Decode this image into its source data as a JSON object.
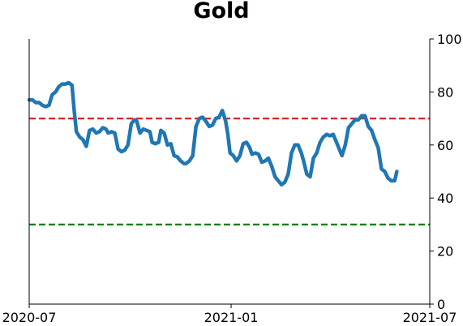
{
  "chart_data": {
    "type": "line",
    "title": "Gold",
    "xlabel": "",
    "ylabel": "",
    "x_tick_labels": [
      "2020-07",
      "2021-01",
      "2021-07"
    ],
    "x_ticks": [
      "2020-07-01",
      "2021-01-01",
      "2021-07-01"
    ],
    "y_ticks": [
      0,
      20,
      40,
      60,
      80,
      100
    ],
    "y_tick_labels": [
      "0",
      "20",
      "40",
      "60",
      "80",
      "100"
    ],
    "ylim": [
      0,
      100
    ],
    "xlim": [
      "2020-07-01",
      "2021-07-01"
    ],
    "y_axis_side": "right",
    "grid": false,
    "reference_lines": [
      {
        "value": 70,
        "color": "#d62728",
        "style": "dashed"
      },
      {
        "value": 30,
        "color": "#008000",
        "style": "dashed"
      }
    ],
    "series": [
      {
        "color": "#1f77b4",
        "points": [
          [
            "2020-07-01",
            77
          ],
          [
            "2020-07-04",
            77
          ],
          [
            "2020-07-07",
            76
          ],
          [
            "2020-07-10",
            76
          ],
          [
            "2020-07-13",
            75
          ],
          [
            "2020-07-16",
            74.5
          ],
          [
            "2020-07-19",
            75
          ],
          [
            "2020-07-22",
            79
          ],
          [
            "2020-07-25",
            80
          ],
          [
            "2020-07-28",
            82
          ],
          [
            "2020-07-31",
            83
          ],
          [
            "2020-08-03",
            83
          ],
          [
            "2020-08-06",
            83.5
          ],
          [
            "2020-08-09",
            82.5
          ],
          [
            "2020-08-11",
            73
          ],
          [
            "2020-08-13",
            65
          ],
          [
            "2020-08-16",
            63
          ],
          [
            "2020-08-19",
            62
          ],
          [
            "2020-08-22",
            59.5
          ],
          [
            "2020-08-25",
            65.5
          ],
          [
            "2020-08-28",
            66
          ],
          [
            "2020-08-31",
            64.5
          ],
          [
            "2020-09-03",
            65
          ],
          [
            "2020-09-06",
            66.5
          ],
          [
            "2020-09-09",
            66
          ],
          [
            "2020-09-11",
            64.5
          ],
          [
            "2020-09-14",
            65
          ],
          [
            "2020-09-17",
            64.5
          ],
          [
            "2020-09-20",
            58.5
          ],
          [
            "2020-09-23",
            57.5
          ],
          [
            "2020-09-26",
            58
          ],
          [
            "2020-09-29",
            60
          ],
          [
            "2020-10-02",
            68
          ],
          [
            "2020-10-05",
            69.5
          ],
          [
            "2020-10-07",
            69
          ],
          [
            "2020-10-10",
            64.5
          ],
          [
            "2020-10-13",
            66
          ],
          [
            "2020-10-16",
            65.5
          ],
          [
            "2020-10-19",
            65
          ],
          [
            "2020-10-21",
            61
          ],
          [
            "2020-10-24",
            60.5
          ],
          [
            "2020-10-27",
            61
          ],
          [
            "2020-10-29",
            65.5
          ],
          [
            "2020-11-01",
            64.5
          ],
          [
            "2020-11-04",
            60
          ],
          [
            "2020-11-07",
            60.5
          ],
          [
            "2020-11-10",
            56
          ],
          [
            "2020-11-13",
            55.5
          ],
          [
            "2020-11-16",
            54
          ],
          [
            "2020-11-19",
            53
          ],
          [
            "2020-11-21",
            53
          ],
          [
            "2020-11-24",
            54
          ],
          [
            "2020-11-27",
            56
          ],
          [
            "2020-11-30",
            67
          ],
          [
            "2020-12-03",
            70
          ],
          [
            "2020-12-06",
            70.5
          ],
          [
            "2020-12-09",
            69
          ],
          [
            "2020-12-12",
            67
          ],
          [
            "2020-12-15",
            67.5
          ],
          [
            "2020-12-18",
            70
          ],
          [
            "2020-12-21",
            70.5
          ],
          [
            "2020-12-24",
            73
          ],
          [
            "2020-12-27",
            69
          ],
          [
            "2020-12-29",
            64
          ],
          [
            "2020-12-31",
            57
          ],
          [
            "2021-01-03",
            56
          ],
          [
            "2021-01-06",
            54
          ],
          [
            "2021-01-09",
            56
          ],
          [
            "2021-01-12",
            60.5
          ],
          [
            "2021-01-15",
            61
          ],
          [
            "2021-01-18",
            59
          ],
          [
            "2021-01-20",
            56.5
          ],
          [
            "2021-01-23",
            57
          ],
          [
            "2021-01-26",
            56.5
          ],
          [
            "2021-01-29",
            53.5
          ],
          [
            "2021-02-01",
            54
          ],
          [
            "2021-02-04",
            55
          ],
          [
            "2021-02-07",
            52
          ],
          [
            "2021-02-10",
            48
          ],
          [
            "2021-02-13",
            46.5
          ],
          [
            "2021-02-16",
            45
          ],
          [
            "2021-02-19",
            46
          ],
          [
            "2021-02-22",
            49
          ],
          [
            "2021-02-25",
            57
          ],
          [
            "2021-02-28",
            60
          ],
          [
            "2021-03-03",
            60
          ],
          [
            "2021-03-06",
            57
          ],
          [
            "2021-03-08",
            54
          ],
          [
            "2021-03-11",
            49
          ],
          [
            "2021-03-14",
            48
          ],
          [
            "2021-03-17",
            55
          ],
          [
            "2021-03-20",
            57
          ],
          [
            "2021-03-23",
            61
          ],
          [
            "2021-03-26",
            63
          ],
          [
            "2021-03-29",
            64
          ],
          [
            "2021-04-01",
            63.5
          ],
          [
            "2021-04-04",
            64
          ],
          [
            "2021-04-07",
            61
          ],
          [
            "2021-04-10",
            58
          ],
          [
            "2021-04-12",
            56
          ],
          [
            "2021-04-15",
            60
          ],
          [
            "2021-04-18",
            66.5
          ],
          [
            "2021-04-21",
            68
          ],
          [
            "2021-04-24",
            69.5
          ],
          [
            "2021-04-27",
            69.5
          ],
          [
            "2021-04-30",
            71
          ],
          [
            "2021-05-03",
            71
          ],
          [
            "2021-05-06",
            67
          ],
          [
            "2021-05-09",
            65.5
          ],
          [
            "2021-05-12",
            62
          ],
          [
            "2021-05-15",
            59
          ],
          [
            "2021-05-18",
            51
          ],
          [
            "2021-05-21",
            50
          ],
          [
            "2021-05-24",
            47.5
          ],
          [
            "2021-05-27",
            46.5
          ],
          [
            "2021-05-30",
            46.5
          ],
          [
            "2021-06-01",
            50
          ]
        ]
      }
    ]
  }
}
